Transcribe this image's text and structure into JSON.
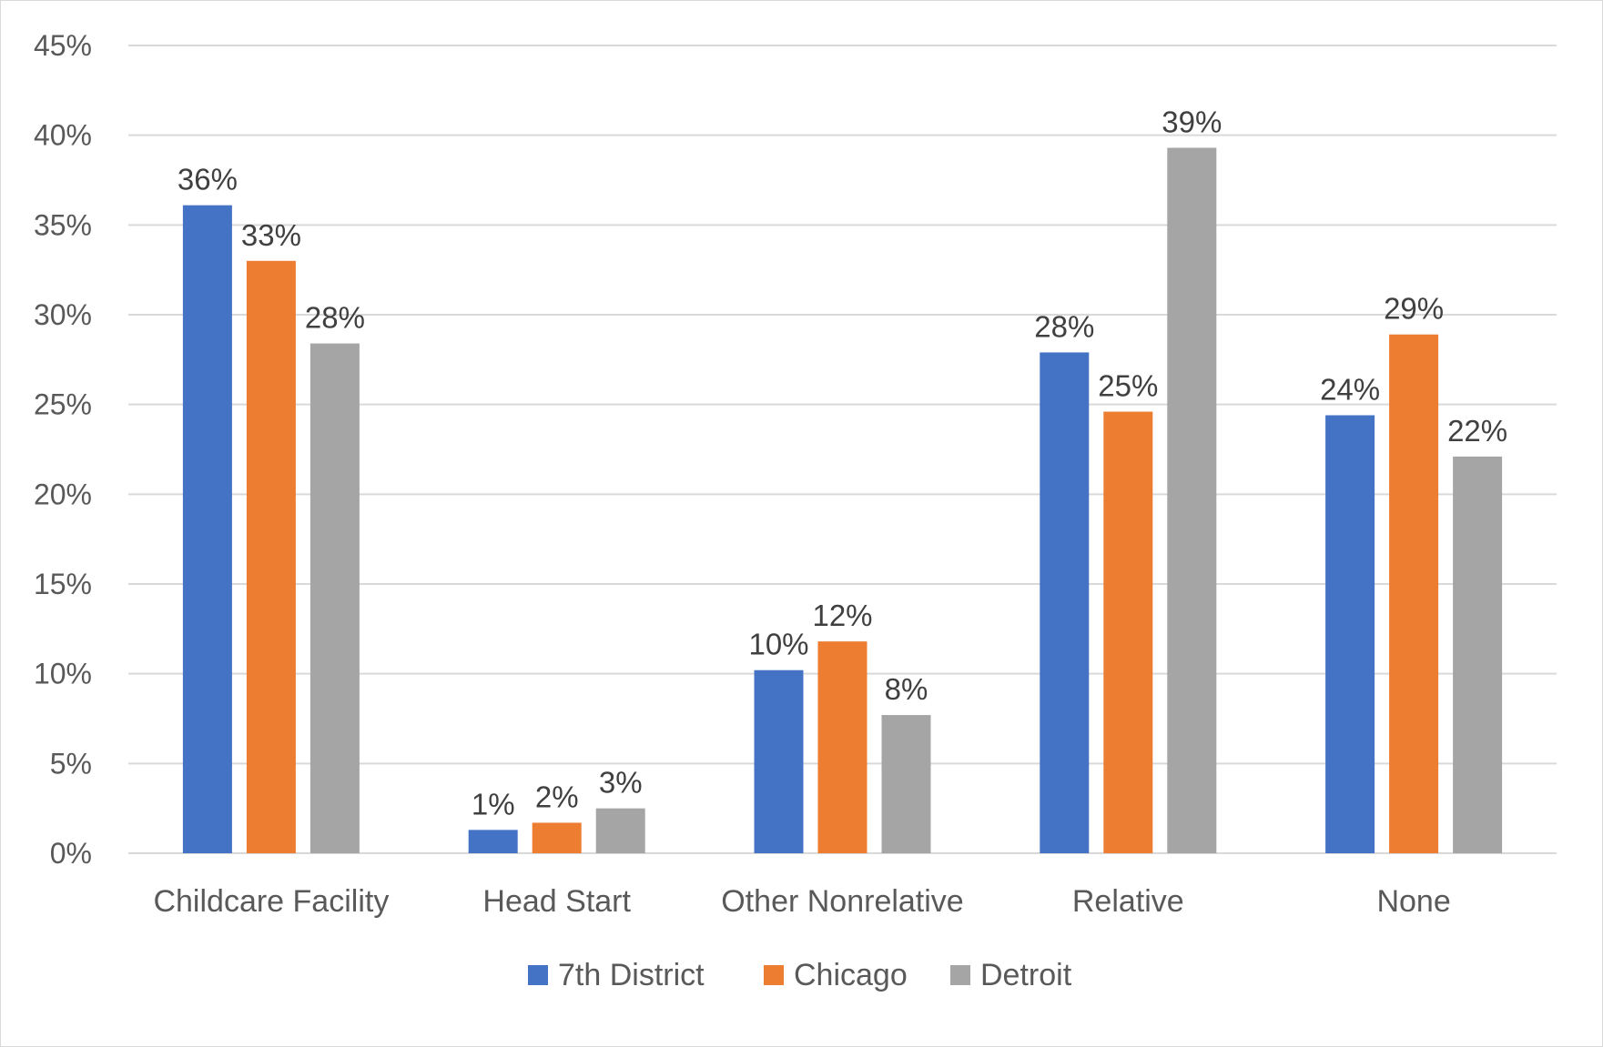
{
  "chart_data": {
    "type": "bar",
    "title": "",
    "xlabel": "",
    "ylabel": "",
    "ylim": [
      0,
      45
    ],
    "y_ticks": [
      "0%",
      "5%",
      "10%",
      "15%",
      "20%",
      "25%",
      "30%",
      "35%",
      "40%",
      "45%"
    ],
    "y_tick_values": [
      0,
      5,
      10,
      15,
      20,
      25,
      30,
      35,
      40,
      45
    ],
    "grid": true,
    "legend_position": "bottom",
    "categories": [
      "Childcare Facility",
      "Head Start",
      "Other Nonrelative",
      "Relative",
      "None"
    ],
    "series": [
      {
        "name": "7th District",
        "color": "#4472C4",
        "values": [
          36.1,
          1.3,
          10.2,
          27.9,
          24.4
        ],
        "labels": [
          "36%",
          "1%",
          "10%",
          "28%",
          "24%"
        ]
      },
      {
        "name": "Chicago",
        "color": "#ED7D31",
        "values": [
          33.0,
          1.7,
          11.8,
          24.6,
          28.9
        ],
        "labels": [
          "33%",
          "2%",
          "12%",
          "25%",
          "29%"
        ]
      },
      {
        "name": "Detroit",
        "color": "#A5A5A5",
        "values": [
          28.4,
          2.5,
          7.7,
          39.3,
          22.1
        ],
        "labels": [
          "28%",
          "3%",
          "8%",
          "39%",
          "22%"
        ]
      }
    ]
  }
}
